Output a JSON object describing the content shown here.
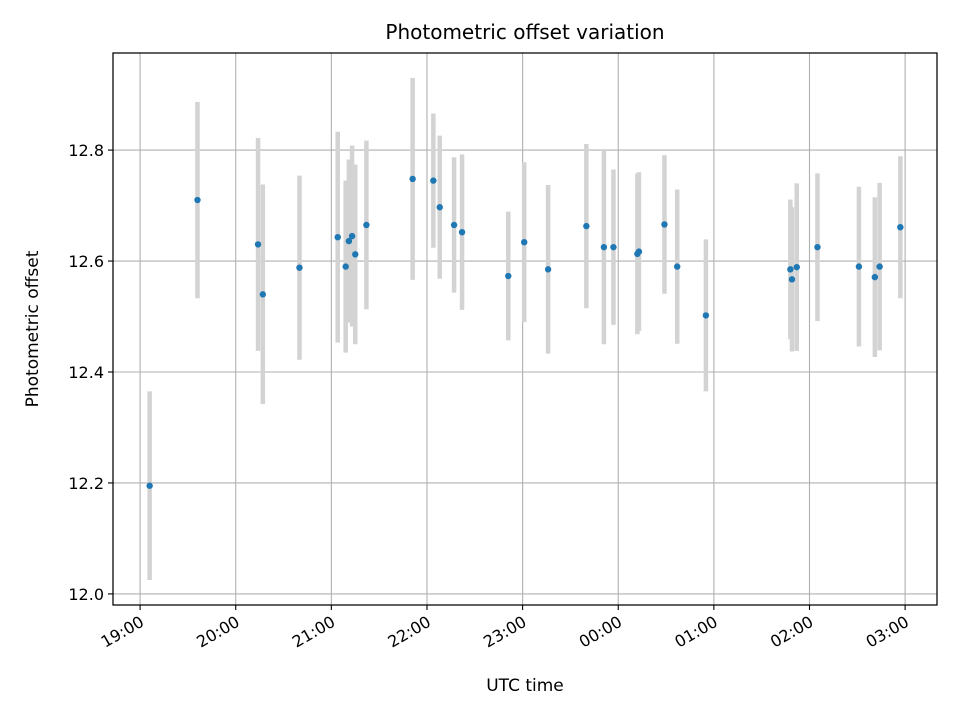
{
  "chart_data": {
    "type": "scatter",
    "title": "Photometric offset variation",
    "xlabel": "UTC time",
    "ylabel": "Photometric offset",
    "x_axis_type": "time",
    "xlim": [
      "18:43",
      "03:20"
    ],
    "ylim": [
      11.98,
      12.975
    ],
    "x_ticks": [
      "19:00",
      "20:00",
      "21:00",
      "22:00",
      "23:00",
      "00:00",
      "01:00",
      "02:00",
      "03:00"
    ],
    "y_ticks": [
      12.0,
      12.2,
      12.4,
      12.6,
      12.8
    ],
    "y_tick_labels": [
      "12.0",
      "12.2",
      "12.4",
      "12.6",
      "12.8"
    ],
    "x_tick_rotation_deg": 30,
    "grid": true,
    "colors": {
      "points": "#1f77b4",
      "error_bars": "#d3d3d3",
      "grid": "#b0b0b0"
    },
    "series": [
      {
        "points": [
          {
            "t": "19:06",
            "y": 12.195,
            "err": 0.17
          },
          {
            "t": "19:36",
            "y": 12.71,
            "err": 0.177
          },
          {
            "t": "20:14",
            "y": 12.63,
            "err": 0.192
          },
          {
            "t": "20:17",
            "y": 12.54,
            "err": 0.198
          },
          {
            "t": "20:40",
            "y": 12.588,
            "err": 0.166
          },
          {
            "t": "21:04",
            "y": 12.643,
            "err": 0.19
          },
          {
            "t": "21:09",
            "y": 12.59,
            "err": 0.155
          },
          {
            "t": "21:11",
            "y": 12.636,
            "err": 0.147
          },
          {
            "t": "21:13",
            "y": 12.645,
            "err": 0.163
          },
          {
            "t": "21:15",
            "y": 12.612,
            "err": 0.162
          },
          {
            "t": "21:22",
            "y": 12.665,
            "err": 0.152
          },
          {
            "t": "21:51",
            "y": 12.748,
            "err": 0.182
          },
          {
            "t": "22:04",
            "y": 12.745,
            "err": 0.121
          },
          {
            "t": "22:08",
            "y": 12.697,
            "err": 0.129
          },
          {
            "t": "22:17",
            "y": 12.665,
            "err": 0.122
          },
          {
            "t": "22:22",
            "y": 12.652,
            "err": 0.14
          },
          {
            "t": "22:51",
            "y": 12.573,
            "err": 0.116
          },
          {
            "t": "23:01",
            "y": 12.634,
            "err": 0.144
          },
          {
            "t": "23:16",
            "y": 12.585,
            "err": 0.152
          },
          {
            "t": "23:40",
            "y": 12.663,
            "err": 0.148
          },
          {
            "t": "23:51",
            "y": 12.625,
            "err": 0.175
          },
          {
            "t": "23:57",
            "y": 12.625,
            "err": 0.14
          },
          {
            "t": "00:12",
            "y": 12.613,
            "err": 0.145
          },
          {
            "t": "00:13",
            "y": 12.617,
            "err": 0.143
          },
          {
            "t": "00:29",
            "y": 12.666,
            "err": 0.125
          },
          {
            "t": "00:37",
            "y": 12.59,
            "err": 0.139
          },
          {
            "t": "00:55",
            "y": 12.502,
            "err": 0.137
          },
          {
            "t": "01:48",
            "y": 12.585,
            "err": 0.126
          },
          {
            "t": "01:49",
            "y": 12.567,
            "err": 0.13
          },
          {
            "t": "01:52",
            "y": 12.589,
            "err": 0.151
          },
          {
            "t": "02:05",
            "y": 12.625,
            "err": 0.133
          },
          {
            "t": "02:31",
            "y": 12.59,
            "err": 0.144
          },
          {
            "t": "02:41",
            "y": 12.571,
            "err": 0.144
          },
          {
            "t": "02:44",
            "y": 12.59,
            "err": 0.151
          },
          {
            "t": "02:57",
            "y": 12.661,
            "err": 0.128
          }
        ]
      }
    ]
  }
}
